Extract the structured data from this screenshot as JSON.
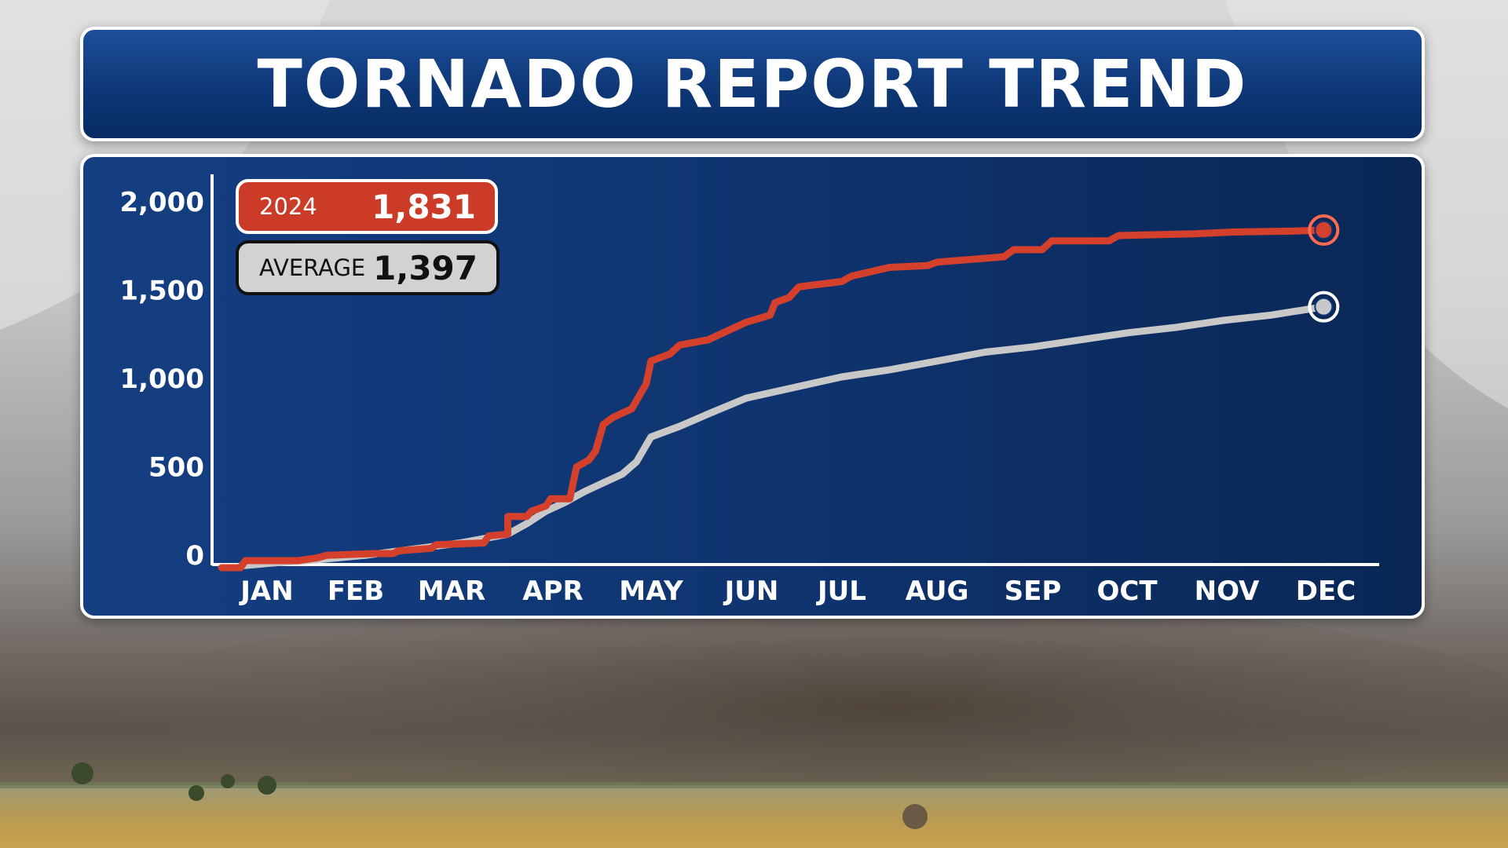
{
  "title": "TORNADO REPORT TREND",
  "legend": {
    "current": {
      "label": "2024",
      "value": "1,831"
    },
    "average": {
      "label": "AVERAGE",
      "value": "1,397"
    }
  },
  "colors": {
    "current_series": "#d4402c",
    "average_series": "#c8c8c8",
    "panel_navy": "#0f3470",
    "title_blue": "#1e4f9a"
  },
  "chart_data": {
    "type": "line",
    "title": "TORNADO REPORT TREND",
    "xlabel": "",
    "ylabel": "",
    "x_ticks": [
      "JAN",
      "FEB",
      "MAR",
      "APR",
      "MAY",
      "JUN",
      "JUL",
      "AUG",
      "SEP",
      "OCT",
      "NOV",
      "DEC"
    ],
    "y_ticks": [
      "0",
      "500",
      "1,000",
      "1,500",
      "2,000"
    ],
    "y_tick_values": [
      0,
      500,
      1000,
      1500,
      2000
    ],
    "ylim": [
      -100,
      2100
    ],
    "xlim": [
      0,
      12
    ],
    "grid": false,
    "legend_position": "top-left",
    "series": [
      {
        "name": "2024",
        "final_value": 1831,
        "points": [
          [
            0,
            -80
          ],
          [
            0.2,
            -80
          ],
          [
            0.25,
            -40
          ],
          [
            0.8,
            -40
          ],
          [
            1.0,
            -25
          ],
          [
            1.1,
            -10
          ],
          [
            1.6,
            0
          ],
          [
            1.8,
            0
          ],
          [
            1.85,
            15
          ],
          [
            2.2,
            30
          ],
          [
            2.25,
            50
          ],
          [
            2.75,
            60
          ],
          [
            2.8,
            100
          ],
          [
            3.0,
            110
          ],
          [
            3.0,
            210
          ],
          [
            3.2,
            210
          ],
          [
            3.25,
            240
          ],
          [
            3.4,
            270
          ],
          [
            3.45,
            310
          ],
          [
            3.65,
            310
          ],
          [
            3.72,
            490
          ],
          [
            3.85,
            530
          ],
          [
            3.92,
            580
          ],
          [
            4.0,
            730
          ],
          [
            4.1,
            770
          ],
          [
            4.3,
            820
          ],
          [
            4.45,
            960
          ],
          [
            4.5,
            1090
          ],
          [
            4.7,
            1130
          ],
          [
            4.8,
            1180
          ],
          [
            5.1,
            1210
          ],
          [
            5.3,
            1260
          ],
          [
            5.5,
            1310
          ],
          [
            5.75,
            1350
          ],
          [
            5.8,
            1420
          ],
          [
            5.95,
            1450
          ],
          [
            6.05,
            1510
          ],
          [
            6.5,
            1540
          ],
          [
            6.6,
            1570
          ],
          [
            7.0,
            1620
          ],
          [
            7.4,
            1630
          ],
          [
            7.5,
            1650
          ],
          [
            8.2,
            1680
          ],
          [
            8.3,
            1720
          ],
          [
            8.6,
            1720
          ],
          [
            8.7,
            1770
          ],
          [
            9.3,
            1770
          ],
          [
            9.4,
            1800
          ],
          [
            10.2,
            1810
          ],
          [
            10.6,
            1820
          ],
          [
            11.2,
            1825
          ],
          [
            11.55,
            1831
          ]
        ]
      },
      {
        "name": "AVERAGE",
        "final_value": 1397,
        "points": [
          [
            0.2,
            -70
          ],
          [
            0.5,
            -55
          ],
          [
            1.0,
            -35
          ],
          [
            1.5,
            -10
          ],
          [
            2.0,
            25
          ],
          [
            2.5,
            60
          ],
          [
            3.0,
            110
          ],
          [
            3.2,
            170
          ],
          [
            3.4,
            240
          ],
          [
            3.6,
            290
          ],
          [
            3.8,
            350
          ],
          [
            4.0,
            400
          ],
          [
            4.2,
            450
          ],
          [
            4.35,
            520
          ],
          [
            4.5,
            660
          ],
          [
            4.8,
            720
          ],
          [
            5.1,
            790
          ],
          [
            5.5,
            880
          ],
          [
            6.0,
            940
          ],
          [
            6.5,
            1000
          ],
          [
            7.0,
            1040
          ],
          [
            7.5,
            1090
          ],
          [
            8.0,
            1140
          ],
          [
            8.5,
            1170
          ],
          [
            9.0,
            1210
          ],
          [
            9.5,
            1250
          ],
          [
            10.0,
            1280
          ],
          [
            10.5,
            1320
          ],
          [
            11.0,
            1350
          ],
          [
            11.55,
            1397
          ]
        ]
      }
    ]
  }
}
